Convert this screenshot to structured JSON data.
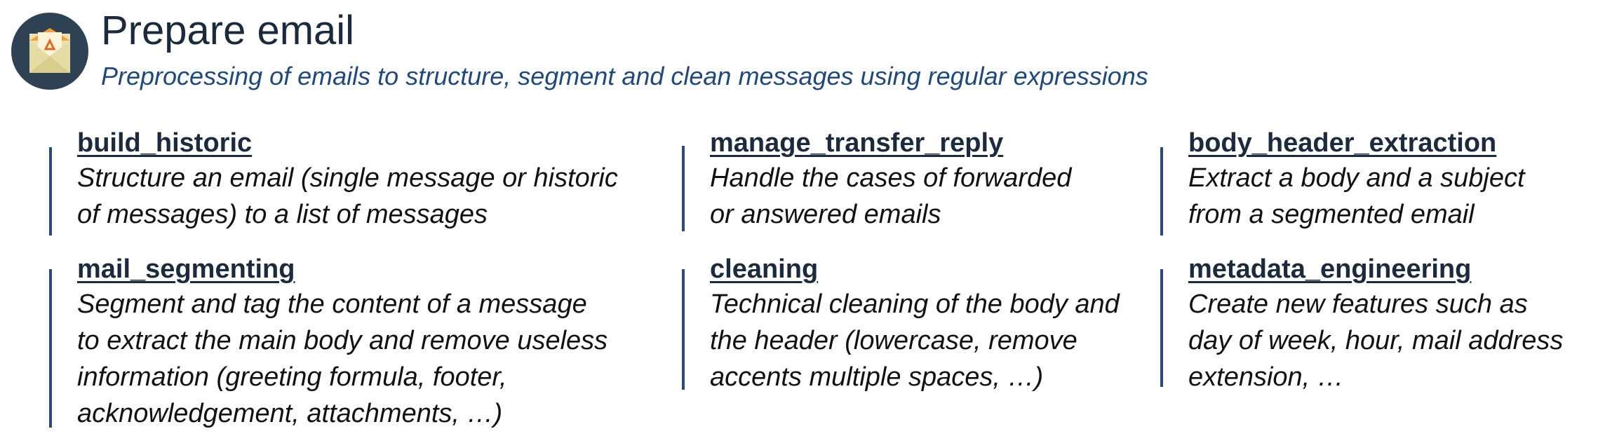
{
  "header": {
    "title": "Prepare email",
    "subtitle": "Preprocessing of emails to structure, segment and clean messages using regular expressions",
    "logo_icon": "email-envelope-icon"
  },
  "colors": {
    "title": "#1b2b3d",
    "subtitle": "#1f497d",
    "bar": "#2c4a74",
    "logo_bg": "#2f4254"
  },
  "modules": [
    {
      "title": "build_historic",
      "lines": [
        "Structure an email (single message or historic",
        "of messages) to a list of messages"
      ]
    },
    {
      "title": "manage_transfer_reply",
      "lines": [
        "Handle the cases of forwarded",
        "or answered emails"
      ]
    },
    {
      "title": "body_header_extraction",
      "lines": [
        "Extract a body and a subject",
        "from a segmented email"
      ]
    },
    {
      "title": "mail_segmenting",
      "lines": [
        "Segment and tag the content of  a message",
        "to extract the main body and remove useless",
        "information (greeting formula, footer,",
        "acknowledgement, attachments, …)"
      ]
    },
    {
      "title": "cleaning",
      "lines": [
        "Technical cleaning of the body and",
        "the header (lowercase, remove",
        "accents multiple spaces, …)"
      ]
    },
    {
      "title": "metadata_engineering",
      "lines": [
        "Create new features such as",
        "day of week, hour, mail address",
        "extension, …"
      ]
    }
  ]
}
